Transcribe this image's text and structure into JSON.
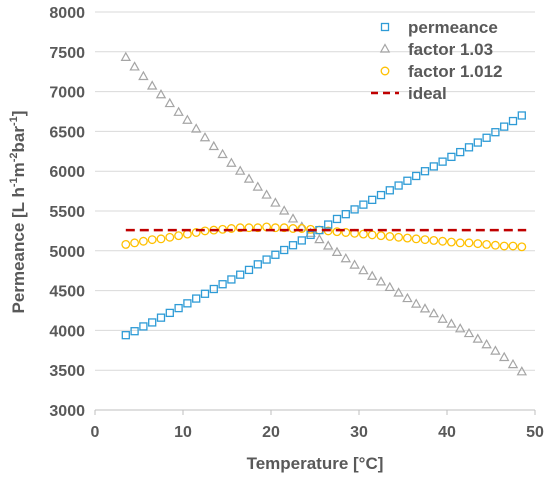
{
  "chart_data": {
    "type": "scatter",
    "xlabel": "Temperature [°C]",
    "ylabel_parts": [
      "Permeance [L h",
      "-1",
      "m",
      "-2",
      "bar",
      "-1",
      "]"
    ],
    "xlim": [
      0,
      50
    ],
    "ylim": [
      3000,
      8000
    ],
    "xticks": [
      0,
      10,
      20,
      30,
      40,
      50
    ],
    "yticks": [
      3000,
      3500,
      4000,
      4500,
      5000,
      5500,
      6000,
      6500,
      7000,
      7500,
      8000
    ],
    "grid": "horizontal",
    "legend_position": "top-right",
    "series": [
      {
        "name": "permeance",
        "marker": "square",
        "color": "#2E9BD6",
        "x": [
          3.5,
          4.5,
          5.5,
          6.5,
          7.5,
          8.5,
          9.5,
          10.5,
          11.5,
          12.5,
          13.5,
          14.5,
          15.5,
          16.5,
          17.5,
          18.5,
          19.5,
          20.5,
          21.5,
          22.5,
          23.5,
          24.5,
          25.5,
          26.5,
          27.5,
          28.5,
          29.5,
          30.5,
          31.5,
          32.5,
          33.5,
          34.5,
          35.5,
          36.5,
          37.5,
          38.5,
          39.5,
          40.5,
          41.5,
          42.5,
          43.5,
          44.5,
          45.5,
          46.5,
          47.5,
          48.5
        ],
        "y": [
          3940,
          3990,
          4050,
          4100,
          4160,
          4220,
          4280,
          4340,
          4400,
          4460,
          4520,
          4580,
          4640,
          4700,
          4760,
          4830,
          4890,
          4950,
          5010,
          5070,
          5130,
          5200,
          5260,
          5330,
          5400,
          5460,
          5520,
          5580,
          5640,
          5700,
          5760,
          5820,
          5880,
          5940,
          6000,
          6060,
          6120,
          6180,
          6240,
          6300,
          6360,
          6420,
          6490,
          6560,
          6630,
          6700
        ]
      },
      {
        "name": "factor 1.03",
        "marker": "triangle",
        "color": "#A5A5A5",
        "x": [
          3.5,
          4.5,
          5.5,
          6.5,
          7.5,
          8.5,
          9.5,
          10.5,
          11.5,
          12.5,
          13.5,
          14.5,
          15.5,
          16.5,
          17.5,
          18.5,
          19.5,
          20.5,
          21.5,
          22.5,
          23.5,
          24.5,
          25.5,
          26.5,
          27.5,
          28.5,
          29.5,
          30.5,
          31.5,
          32.5,
          33.5,
          34.5,
          35.5,
          36.5,
          37.5,
          38.5,
          39.5,
          40.5,
          41.5,
          42.5,
          43.5,
          44.5,
          45.5,
          46.5,
          47.5,
          48.5
        ],
        "y": [
          7430,
          7310,
          7190,
          7070,
          6960,
          6850,
          6740,
          6640,
          6530,
          6420,
          6310,
          6210,
          6100,
          6000,
          5900,
          5800,
          5700,
          5600,
          5500,
          5400,
          5300,
          5220,
          5140,
          5060,
          4980,
          4900,
          4820,
          4750,
          4680,
          4610,
          4540,
          4470,
          4400,
          4330,
          4270,
          4210,
          4140,
          4080,
          4020,
          3960,
          3890,
          3820,
          3740,
          3660,
          3570,
          3480
        ]
      },
      {
        "name": "factor 1.012",
        "marker": "circle",
        "color": "#FFC000",
        "x": [
          3.5,
          4.5,
          5.5,
          6.5,
          7.5,
          8.5,
          9.5,
          10.5,
          11.5,
          12.5,
          13.5,
          14.5,
          15.5,
          16.5,
          17.5,
          18.5,
          19.5,
          20.5,
          21.5,
          22.5,
          23.5,
          24.5,
          25.5,
          26.5,
          27.5,
          28.5,
          29.5,
          30.5,
          31.5,
          32.5,
          33.5,
          34.5,
          35.5,
          36.5,
          37.5,
          38.5,
          39.5,
          40.5,
          41.5,
          42.5,
          43.5,
          44.5,
          45.5,
          46.5,
          47.5,
          48.5
        ],
        "y": [
          5080,
          5100,
          5120,
          5140,
          5150,
          5170,
          5190,
          5210,
          5230,
          5250,
          5260,
          5270,
          5280,
          5290,
          5290,
          5290,
          5300,
          5290,
          5290,
          5280,
          5280,
          5270,
          5260,
          5250,
          5240,
          5230,
          5220,
          5210,
          5200,
          5190,
          5180,
          5170,
          5160,
          5150,
          5140,
          5130,
          5120,
          5110,
          5100,
          5100,
          5090,
          5080,
          5070,
          5060,
          5060,
          5050
        ]
      },
      {
        "name": "ideal",
        "marker": "dashed-line",
        "color": "#C00000",
        "x": [
          3.5,
          49
        ],
        "y": [
          5260,
          5260
        ]
      }
    ]
  }
}
